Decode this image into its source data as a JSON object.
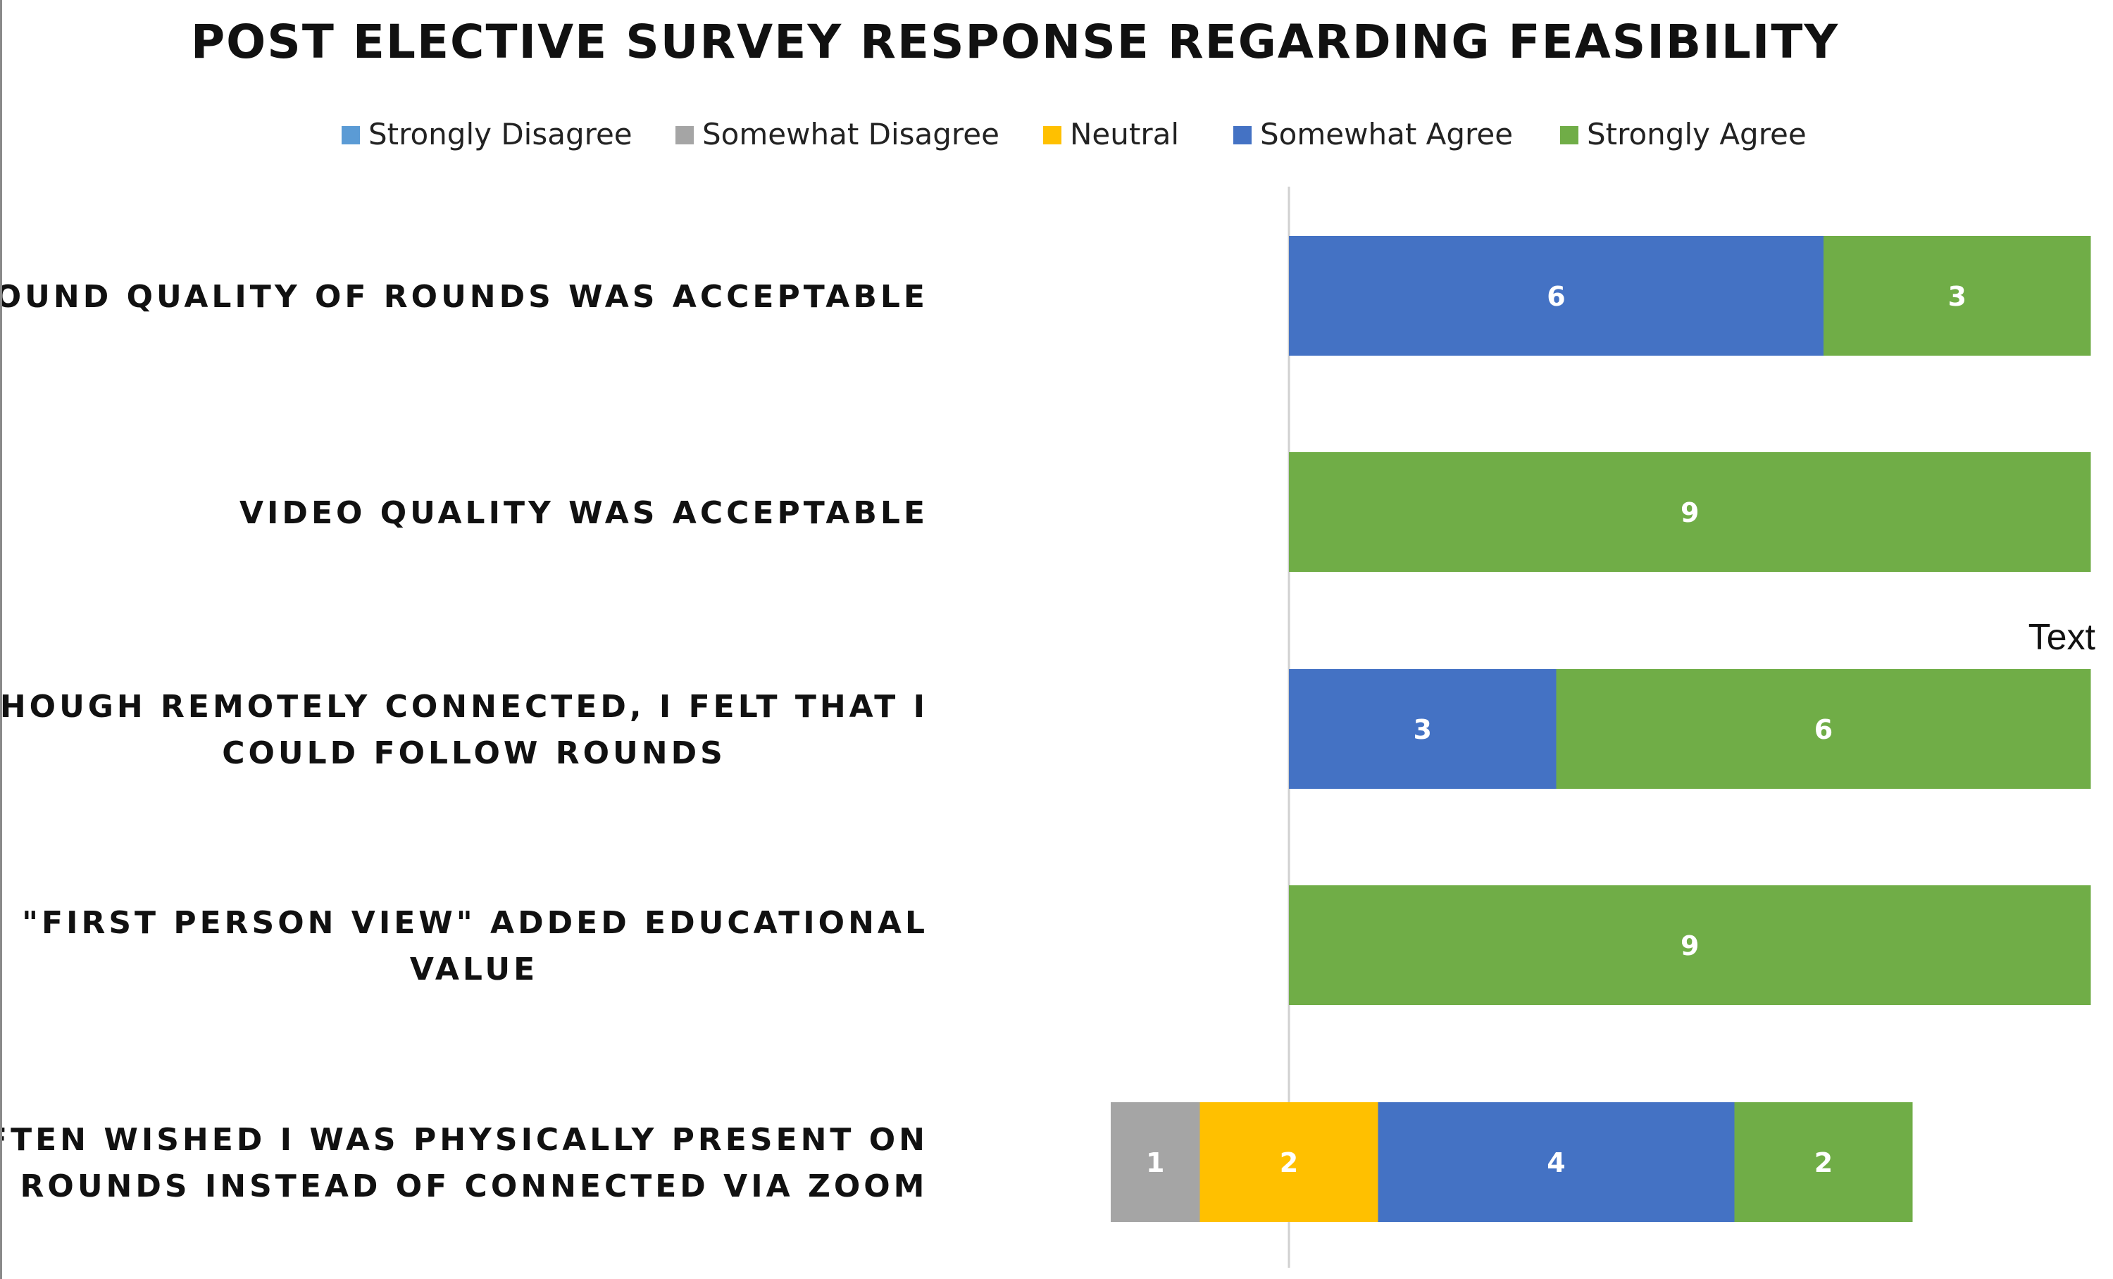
{
  "chart_data": {
    "type": "bar",
    "orientation": "horizontal",
    "stacked": "diverging",
    "title": "POST ELECTIVE SURVEY RESPONSE REGARDING FEASIBILITY",
    "legend_position": "top",
    "categories": [
      "SOUND QUALITY OF ROUNDS WAS ACCEPTABLE",
      "VIDEO QUALITY WAS ACCEPTABLE",
      "ALTHOUGH REMOTELY CONNECTED, I FELT THAT I COULD FOLLOW ROUNDS",
      "THE \"FIRST PERSON VIEW\" ADDED EDUCATIONAL VALUE",
      "I OFTEN WISHED I WAS PHYSICALLY PRESENT ON ROUNDS INSTEAD OF CONNECTED VIA ZOOM"
    ],
    "category_lines": [
      [
        "SOUND QUALITY OF ROUNDS WAS ACCEPTABLE"
      ],
      [
        "VIDEO QUALITY WAS ACCEPTABLE"
      ],
      [
        "ALTHOUGH REMOTELY CONNECTED, I FELT THAT I",
        "COULD FOLLOW ROUNDS"
      ],
      [
        "THE \"FIRST PERSON VIEW\" ADDED EDUCATIONAL",
        "VALUE"
      ],
      [
        "I OFTEN WISHED I WAS PHYSICALLY PRESENT ON",
        "ROUNDS INSTEAD OF CONNECTED VIA ZOOM"
      ]
    ],
    "series": [
      {
        "name": "Strongly Disagree",
        "color": "#5b9bd5",
        "values": [
          0,
          0,
          0,
          0,
          0
        ]
      },
      {
        "name": "Somewhat Disagree",
        "color": "#a5a5a5",
        "values": [
          0,
          0,
          0,
          0,
          1
        ]
      },
      {
        "name": "Neutral",
        "color": "#ffc000",
        "values": [
          0,
          0,
          0,
          0,
          2
        ]
      },
      {
        "name": "Somewhat Agree",
        "color": "#4472c4",
        "values": [
          6,
          0,
          3,
          0,
          4
        ]
      },
      {
        "name": "Strongly Agree",
        "color": "#70ad47",
        "values": [
          3,
          9,
          6,
          9,
          2
        ]
      }
    ],
    "annotation": "Text",
    "grid": false
  }
}
